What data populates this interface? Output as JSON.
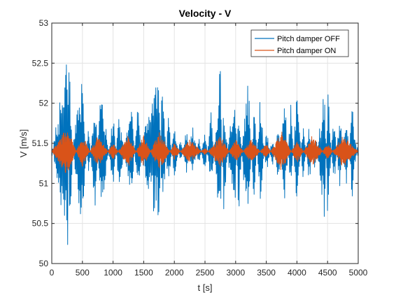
{
  "chart_data": {
    "type": "line",
    "title": "Velocity - V",
    "xlabel": "t [s]",
    "ylabel": "V [m/s]",
    "xlim": [
      0,
      5000
    ],
    "ylim": [
      50,
      53
    ],
    "xticks": [
      0,
      500,
      1000,
      1500,
      2000,
      2500,
      3000,
      3500,
      4000,
      4500,
      5000
    ],
    "yticks": [
      50,
      50.5,
      51,
      51.5,
      52,
      52.5,
      53
    ],
    "xtick_labels": [
      "0",
      "500",
      "1000",
      "1500",
      "2000",
      "2500",
      "3000",
      "3500",
      "4000",
      "4500",
      "5000"
    ],
    "ytick_labels": [
      "50",
      "50.5",
      "51",
      "51.5",
      "52",
      "52.5",
      "53"
    ],
    "grid": true,
    "legend_position": "top-right",
    "series": [
      {
        "name": "Pitch damper OFF",
        "color": "#0072BD",
        "mean": 51.4,
        "approx_min": 50.1,
        "approx_max": 52.73,
        "samples": [
          [
            0,
            51.3
          ],
          [
            100,
            51.9
          ],
          [
            200,
            52.3
          ],
          [
            260,
            52.73
          ],
          [
            280,
            50.1
          ],
          [
            350,
            51.5
          ],
          [
            500,
            52.4
          ],
          [
            600,
            51.0
          ],
          [
            700,
            52.2
          ],
          [
            800,
            50.6
          ],
          [
            900,
            51.2
          ],
          [
            1000,
            51.9
          ],
          [
            1100,
            50.9
          ],
          [
            1200,
            51.5
          ],
          [
            1300,
            52.0
          ],
          [
            1400,
            50.8
          ],
          [
            1500,
            51.6
          ],
          [
            1650,
            52.2
          ],
          [
            1750,
            52.3
          ],
          [
            1800,
            50.45
          ],
          [
            1900,
            51.9
          ],
          [
            2000,
            51.0
          ],
          [
            2100,
            51.6
          ],
          [
            2200,
            51.1
          ],
          [
            2300,
            51.8
          ],
          [
            2400,
            51.2
          ],
          [
            2500,
            51.7
          ],
          [
            2600,
            50.9
          ],
          [
            2750,
            52.5
          ],
          [
            2800,
            50.6
          ],
          [
            2900,
            51.7
          ],
          [
            3000,
            52.0
          ],
          [
            3050,
            50.5
          ],
          [
            3100,
            51.5
          ],
          [
            3200,
            52.4
          ],
          [
            3300,
            50.7
          ],
          [
            3400,
            52.1
          ],
          [
            3500,
            51.1
          ],
          [
            3600,
            51.6
          ],
          [
            3700,
            51.0
          ],
          [
            3800,
            52.1
          ],
          [
            3900,
            50.8
          ],
          [
            4000,
            52.2
          ],
          [
            4100,
            51.0
          ],
          [
            4200,
            51.8
          ],
          [
            4300,
            51.1
          ],
          [
            4450,
            52.4
          ],
          [
            4500,
            50.45
          ],
          [
            4600,
            51.9
          ],
          [
            4700,
            50.9
          ],
          [
            4800,
            52.0
          ],
          [
            4900,
            50.8
          ],
          [
            5000,
            51.6
          ]
        ]
      },
      {
        "name": "Pitch damper ON",
        "color": "#D95319",
        "mean": 51.4,
        "approx_min": 51.05,
        "approx_max": 51.75,
        "samples": [
          [
            0,
            51.4
          ],
          [
            250,
            51.7
          ],
          [
            500,
            51.2
          ],
          [
            750,
            51.6
          ],
          [
            1000,
            51.3
          ],
          [
            1250,
            51.6
          ],
          [
            1500,
            51.2
          ],
          [
            1750,
            51.65
          ],
          [
            2000,
            51.3
          ],
          [
            2250,
            51.55
          ],
          [
            2500,
            51.35
          ],
          [
            2750,
            51.6
          ],
          [
            3000,
            51.25
          ],
          [
            3250,
            51.55
          ],
          [
            3500,
            51.3
          ],
          [
            3750,
            51.65
          ],
          [
            4000,
            51.25
          ],
          [
            4250,
            51.6
          ],
          [
            4500,
            51.3
          ],
          [
            4750,
            51.6
          ],
          [
            5000,
            51.4
          ]
        ]
      }
    ]
  }
}
